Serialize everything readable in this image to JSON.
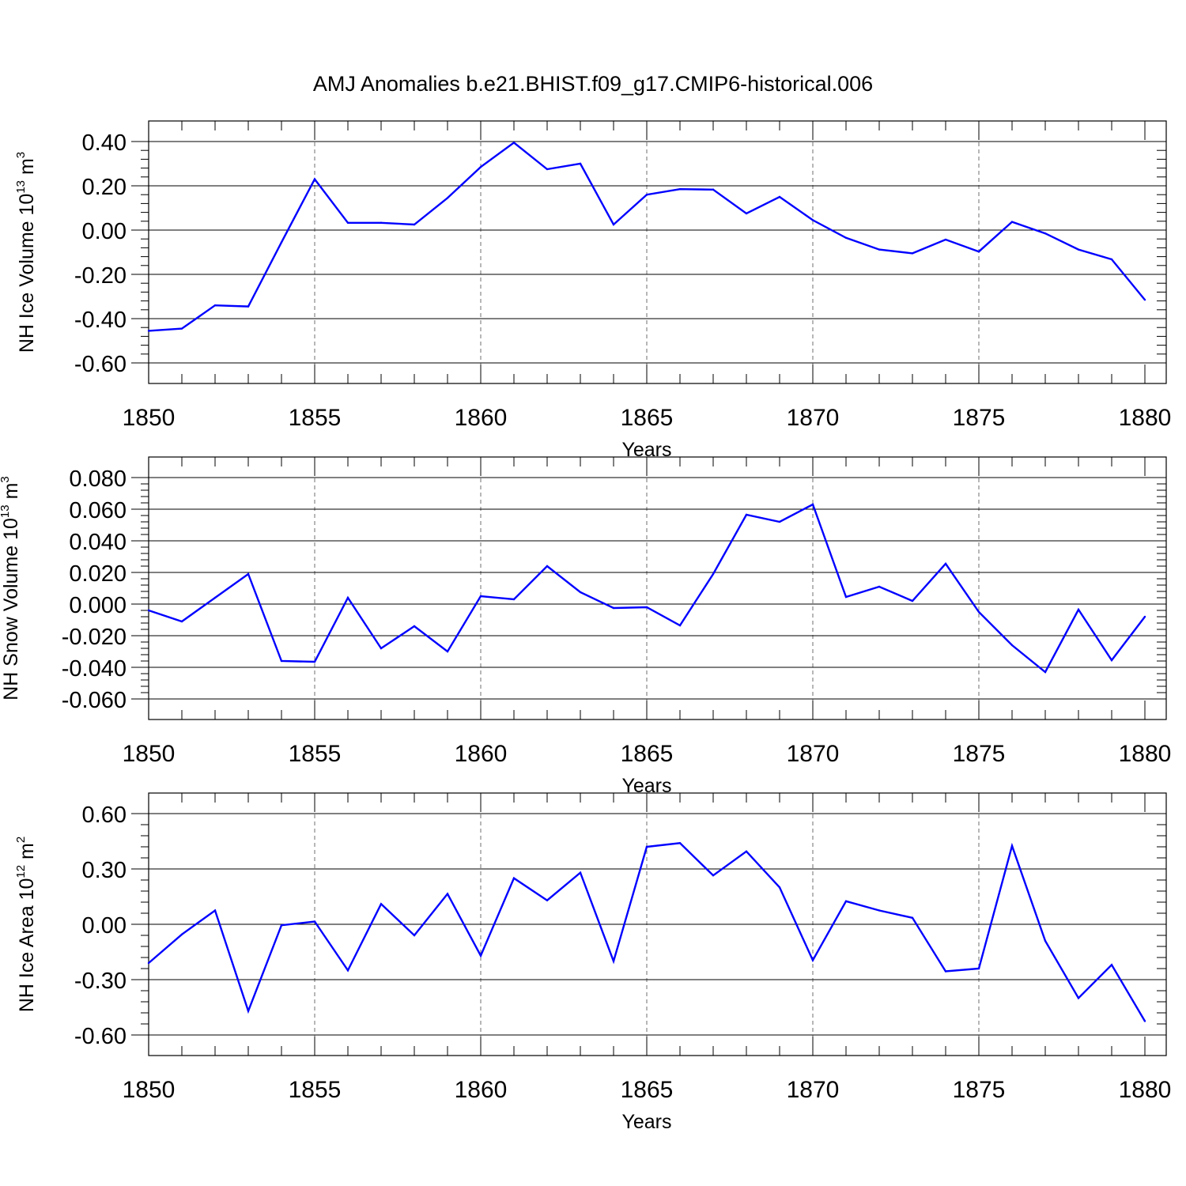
{
  "title": "AMJ Anomalies b.e21.BHIST.f09_g17.CMIP6-historical.006",
  "colors": {
    "line": "#0000ff",
    "axes": "#000000",
    "grid": "#000000"
  },
  "chart_data": [
    {
      "type": "line",
      "xlabel": "Years",
      "ylabel": {
        "prefix": "NH Ice Volume 10",
        "exponent": "13",
        "unit": " m",
        "unit_exponent": "3"
      },
      "xlim": [
        1850,
        1880
      ],
      "ylim": [
        -0.6,
        0.4
      ],
      "yticks": [
        0.4,
        0.2,
        0.0,
        -0.2,
        -0.4,
        -0.6
      ],
      "ytick_labels": [
        "0.40",
        "0.20",
        "0.00",
        "-0.20",
        "-0.40",
        "-0.60"
      ],
      "xticks": [
        1850,
        1855,
        1860,
        1865,
        1870,
        1875,
        1880
      ],
      "xtick_labels": [
        "1850",
        "1855",
        "1860",
        "1865",
        "1870",
        "1875",
        "1880"
      ],
      "grid": "vertical dashed at major x ticks",
      "x": [
        1850,
        1851,
        1852,
        1853,
        1854,
        1855,
        1856,
        1857,
        1858,
        1859,
        1860,
        1861,
        1862,
        1863,
        1864,
        1865,
        1866,
        1867,
        1868,
        1869,
        1870,
        1871,
        1872,
        1873,
        1874,
        1875,
        1876,
        1877,
        1878,
        1879,
        1880
      ],
      "series": [
        {
          "values": [
            -0.455,
            -0.445,
            -0.34,
            -0.345,
            -0.055,
            0.23,
            0.033,
            0.033,
            0.025,
            0.145,
            0.285,
            0.395,
            0.275,
            0.3,
            0.025,
            0.16,
            0.185,
            0.183,
            0.075,
            0.15,
            0.045,
            -0.035,
            -0.088,
            -0.105,
            -0.043,
            -0.097,
            0.037,
            -0.015,
            -0.088,
            -0.132,
            -0.315
          ]
        }
      ]
    },
    {
      "type": "line",
      "xlabel": "Years",
      "ylabel": {
        "prefix": "NH Snow Volume 10",
        "exponent": "13",
        "unit": " m",
        "unit_exponent": "3"
      },
      "xlim": [
        1850,
        1880
      ],
      "ylim": [
        -0.06,
        0.08
      ],
      "yticks": [
        0.08,
        0.06,
        0.04,
        0.02,
        0.0,
        -0.02,
        -0.04,
        -0.06
      ],
      "ytick_labels": [
        "0.080",
        "0.060",
        "0.040",
        "0.020",
        "0.000",
        "-0.020",
        "-0.040",
        "-0.060"
      ],
      "xticks": [
        1850,
        1855,
        1860,
        1865,
        1870,
        1875,
        1880
      ],
      "xtick_labels": [
        "1850",
        "1855",
        "1860",
        "1865",
        "1870",
        "1875",
        "1880"
      ],
      "grid": "vertical dashed at major x ticks",
      "x": [
        1850,
        1851,
        1852,
        1853,
        1854,
        1855,
        1856,
        1857,
        1858,
        1859,
        1860,
        1861,
        1862,
        1863,
        1864,
        1865,
        1866,
        1867,
        1868,
        1869,
        1870,
        1871,
        1872,
        1873,
        1874,
        1875,
        1876,
        1877,
        1878,
        1879,
        1880
      ],
      "series": [
        {
          "values": [
            -0.004,
            -0.011,
            0.004,
            0.019,
            -0.036,
            -0.0365,
            0.004,
            -0.028,
            -0.014,
            -0.03,
            0.005,
            0.003,
            0.024,
            0.0075,
            -0.0025,
            -0.002,
            -0.0135,
            0.019,
            0.0565,
            0.052,
            0.063,
            0.0045,
            0.011,
            0.002,
            0.0255,
            -0.005,
            -0.026,
            -0.043,
            -0.0035,
            -0.0355,
            -0.008
          ]
        }
      ]
    },
    {
      "type": "line",
      "xlabel": "Years",
      "ylabel": {
        "prefix": "NH Ice Area 10",
        "exponent": "12",
        "unit": " m",
        "unit_exponent": "2"
      },
      "xlim": [
        1850,
        1880
      ],
      "ylim": [
        -0.6,
        0.6
      ],
      "yticks": [
        0.6,
        0.3,
        0.0,
        -0.3,
        -0.6
      ],
      "ytick_labels": [
        "0.60",
        "0.30",
        "0.00",
        "-0.30",
        "-0.60"
      ],
      "xticks": [
        1850,
        1855,
        1860,
        1865,
        1870,
        1875,
        1880
      ],
      "xtick_labels": [
        "1850",
        "1855",
        "1860",
        "1865",
        "1870",
        "1875",
        "1880"
      ],
      "grid": "vertical dashed at major x ticks",
      "x": [
        1850,
        1851,
        1852,
        1853,
        1854,
        1855,
        1856,
        1857,
        1858,
        1859,
        1860,
        1861,
        1862,
        1863,
        1864,
        1865,
        1866,
        1867,
        1868,
        1869,
        1870,
        1871,
        1872,
        1873,
        1874,
        1875,
        1876,
        1877,
        1878,
        1879,
        1880
      ],
      "series": [
        {
          "values": [
            -0.21,
            -0.055,
            0.075,
            -0.47,
            -0.005,
            0.015,
            -0.25,
            0.11,
            -0.06,
            0.165,
            -0.17,
            0.25,
            0.13,
            0.28,
            -0.2,
            0.42,
            0.44,
            0.265,
            0.395,
            0.2,
            -0.195,
            0.125,
            0.075,
            0.035,
            -0.255,
            -0.24,
            0.425,
            -0.09,
            -0.4,
            -0.22,
            -0.525
          ]
        }
      ]
    }
  ]
}
